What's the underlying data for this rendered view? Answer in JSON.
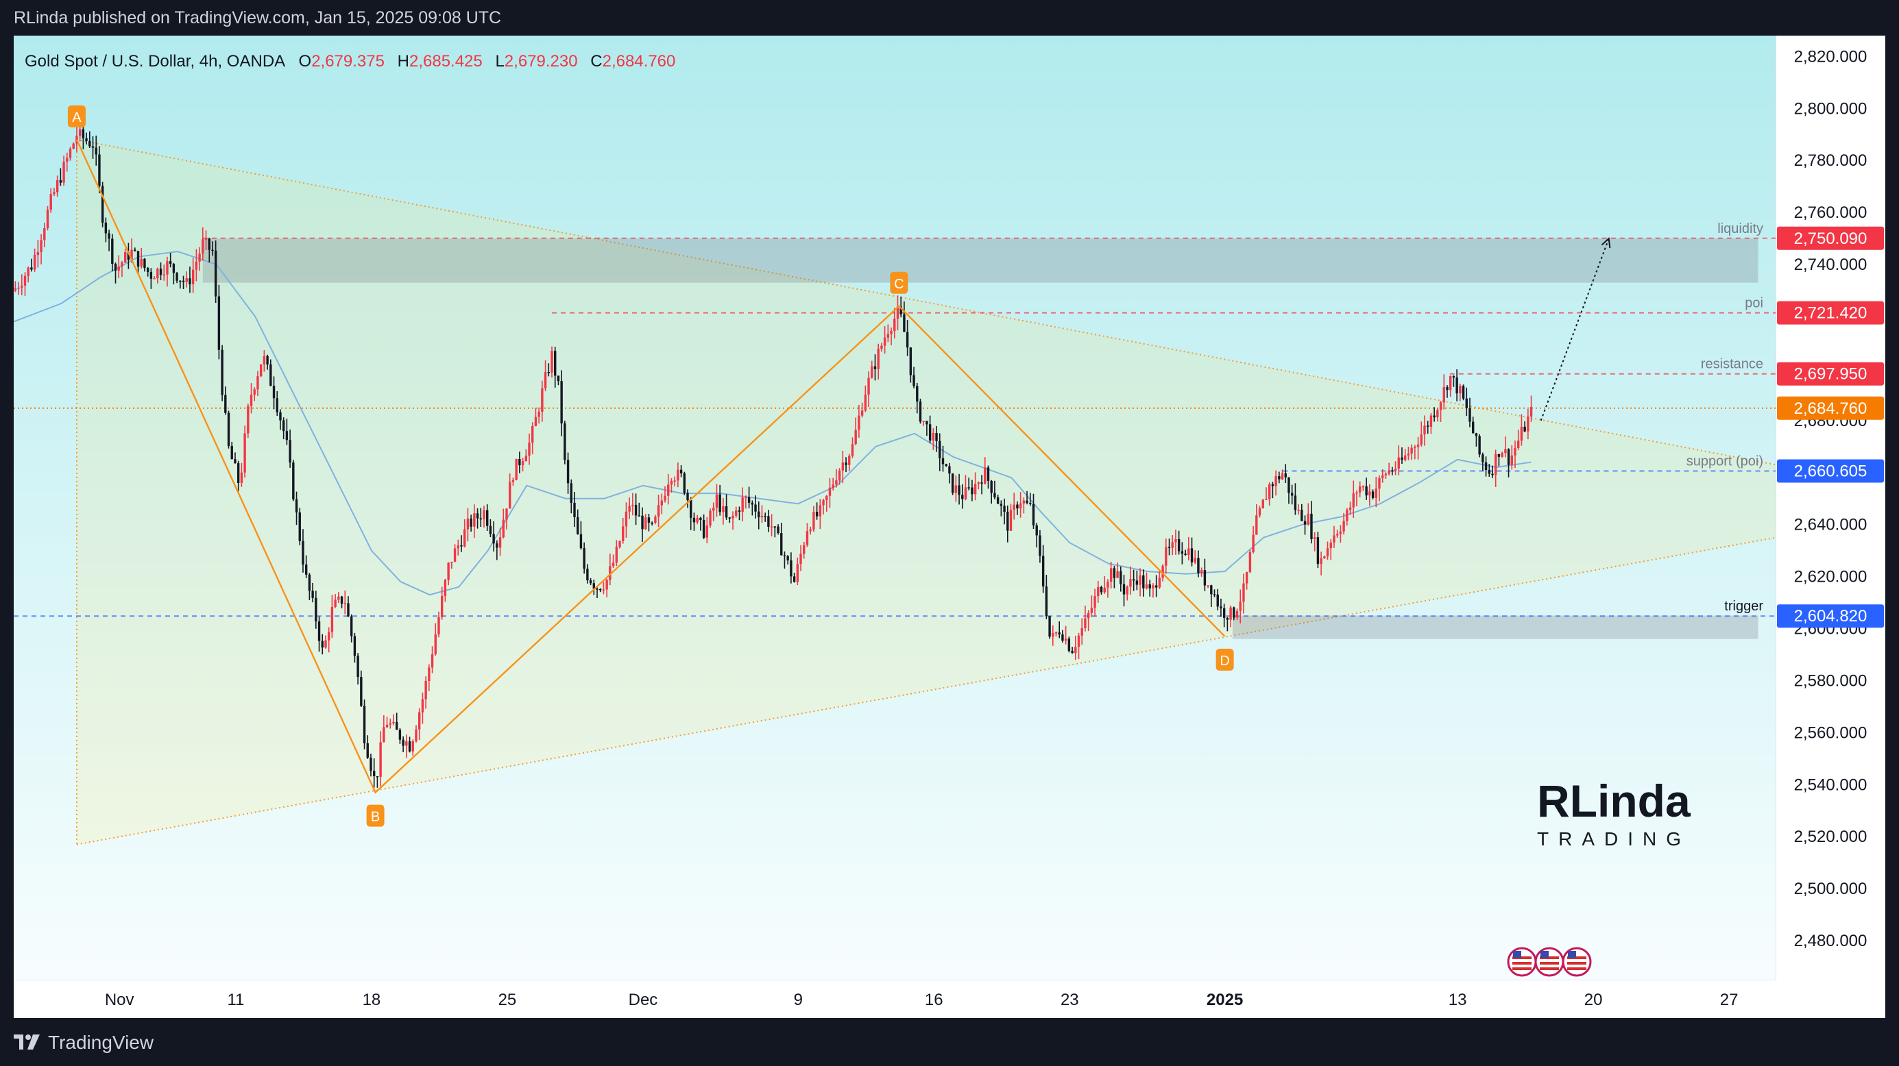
{
  "header": {
    "published": "RLinda published on TradingView.com, Jan 15, 2025 09:08 UTC"
  },
  "legend": {
    "symbol": "Gold Spot / U.S. Dollar, 4h, OANDA",
    "o_label": "O",
    "o_value": "2,679.375",
    "h_label": "H",
    "h_value": "2,685.425",
    "l_label": "L",
    "l_value": "2,679.230",
    "c_label": "C",
    "c_value": "2,684.760"
  },
  "footer": {
    "brand": "TradingView"
  },
  "watermark": {
    "line1": "RLinda",
    "line2": "TRADING"
  },
  "colors": {
    "up": "#f23645",
    "down": "#131722",
    "pattern": "#f7931a",
    "red_level": "#f23645",
    "blue_level": "#2962ff",
    "last_price": "#f57c00",
    "ma": "#7fb2e0",
    "bg_top": "#b2ebee",
    "bg_bottom": "#f7fdfe"
  },
  "chart_data": {
    "type": "candlestick",
    "timeframe": "4h",
    "ylim": [
      2465,
      2828
    ],
    "y_ticks": [
      2480,
      2500,
      2520,
      2540,
      2560,
      2580,
      2600,
      2620,
      2640,
      2660,
      2680,
      2700,
      2720,
      2740,
      2760,
      2780,
      2800,
      2820
    ],
    "y_tick_labels": [
      "2,480.000",
      "2,500.000",
      "2,520.000",
      "2,540.000",
      "2,560.000",
      "2,580.000",
      "2,600.000",
      "2,620.000",
      "2,640.000",
      "2,660.000",
      "2,680.000",
      "2,700.000",
      "2,720.000",
      "2,740.000",
      "2,760.000",
      "2,780.000",
      "2,800.000",
      "2,820.000"
    ],
    "x_ticks": [
      {
        "label": "Nov",
        "day": 5,
        "bold": false
      },
      {
        "label": "11",
        "day": 11,
        "bold": false
      },
      {
        "label": "18",
        "day": 18,
        "bold": false
      },
      {
        "label": "25",
        "day": 25,
        "bold": false
      },
      {
        "label": "Dec",
        "day": 32,
        "bold": false
      },
      {
        "label": "9",
        "day": 40,
        "bold": false
      },
      {
        "label": "16",
        "day": 47,
        "bold": false
      },
      {
        "label": "23",
        "day": 54,
        "bold": false
      },
      {
        "label": "2025",
        "day": 62,
        "bold": true
      },
      {
        "label": "13",
        "day": 74,
        "bold": false
      },
      {
        "label": "20",
        "day": 81,
        "bold": false
      },
      {
        "label": "27",
        "day": 88,
        "bold": false
      }
    ],
    "x_range": [
      -0.45,
      90.4
    ],
    "price_path": [
      [
        -0.45,
        2730
      ],
      [
        0.5,
        2740
      ],
      [
        1.5,
        2765
      ],
      [
        2.8,
        2790
      ],
      [
        3.7,
        2786
      ],
      [
        4.1,
        2760
      ],
      [
        4.8,
        2738
      ],
      [
        5.6,
        2745
      ],
      [
        6.6,
        2736
      ],
      [
        7.5,
        2740
      ],
      [
        8.5,
        2732
      ],
      [
        9.3,
        2748
      ],
      [
        9.8,
        2745
      ],
      [
        10.2,
        2700
      ],
      [
        10.6,
        2670
      ],
      [
        11.2,
        2655
      ],
      [
        11.7,
        2688
      ],
      [
        12.4,
        2705
      ],
      [
        13,
        2690
      ],
      [
        13.6,
        2672
      ],
      [
        14.1,
        2645
      ],
      [
        14.6,
        2620
      ],
      [
        15.1,
        2605
      ],
      [
        15.5,
        2590
      ],
      [
        16,
        2608
      ],
      [
        16.6,
        2612
      ],
      [
        17.2,
        2588
      ],
      [
        17.6,
        2560
      ],
      [
        18.2,
        2540
      ],
      [
        18.7,
        2565
      ],
      [
        19.3,
        2560
      ],
      [
        20,
        2555
      ],
      [
        20.7,
        2575
      ],
      [
        21.3,
        2598
      ],
      [
        22,
        2625
      ],
      [
        23,
        2640
      ],
      [
        23.8,
        2645
      ],
      [
        24.5,
        2632
      ],
      [
        25.3,
        2660
      ],
      [
        26.2,
        2672
      ],
      [
        26.9,
        2694
      ],
      [
        27.3,
        2705
      ],
      [
        27.7,
        2690
      ],
      [
        28,
        2660
      ],
      [
        28.5,
        2640
      ],
      [
        29,
        2622
      ],
      [
        29.6,
        2616
      ],
      [
        30.1,
        2618
      ],
      [
        30.6,
        2628
      ],
      [
        31.3,
        2648
      ],
      [
        31.9,
        2641
      ],
      [
        32.5,
        2638
      ],
      [
        33.4,
        2660
      ],
      [
        34,
        2658
      ],
      [
        34.6,
        2642
      ],
      [
        35.2,
        2637
      ],
      [
        35.8,
        2650
      ],
      [
        36.4,
        2640
      ],
      [
        37.2,
        2650
      ],
      [
        38,
        2645
      ],
      [
        38.6,
        2640
      ],
      [
        39.2,
        2630
      ],
      [
        39.8,
        2618
      ],
      [
        40.5,
        2640
      ],
      [
        41.2,
        2645
      ],
      [
        42,
        2660
      ],
      [
        42.8,
        2670
      ],
      [
        43.4,
        2690
      ],
      [
        44.1,
        2705
      ],
      [
        44.6,
        2715
      ],
      [
        45.2,
        2722
      ],
      [
        45.6,
        2710
      ],
      [
        46.1,
        2685
      ],
      [
        46.8,
        2675
      ],
      [
        47.3,
        2667
      ],
      [
        47.9,
        2655
      ],
      [
        48.5,
        2651
      ],
      [
        49,
        2654
      ],
      [
        49.6,
        2660
      ],
      [
        50.2,
        2651
      ],
      [
        50.8,
        2640
      ],
      [
        51.4,
        2650
      ],
      [
        52,
        2646
      ],
      [
        52.5,
        2625
      ],
      [
        53,
        2595
      ],
      [
        53.5,
        2600
      ],
      [
        54.1,
        2592
      ],
      [
        54.8,
        2602
      ],
      [
        55.5,
        2615
      ],
      [
        56.2,
        2623
      ],
      [
        56.8,
        2615
      ],
      [
        57.5,
        2620
      ],
      [
        58.2,
        2613
      ],
      [
        58.9,
        2628
      ],
      [
        59.5,
        2632
      ],
      [
        60.2,
        2630
      ],
      [
        60.8,
        2620
      ],
      [
        61.3,
        2616
      ],
      [
        61.8,
        2607
      ],
      [
        62.4,
        2605
      ],
      [
        63,
        2615
      ],
      [
        63.6,
        2640
      ],
      [
        64.3,
        2655
      ],
      [
        65,
        2660
      ],
      [
        65.7,
        2645
      ],
      [
        66.3,
        2642
      ],
      [
        66.9,
        2625
      ],
      [
        67.5,
        2635
      ],
      [
        68.2,
        2642
      ],
      [
        68.9,
        2655
      ],
      [
        69.6,
        2652
      ],
      [
        70.3,
        2660
      ],
      [
        71,
        2663
      ],
      [
        71.7,
        2670
      ],
      [
        72.4,
        2678
      ],
      [
        73.1,
        2688
      ],
      [
        73.6,
        2697
      ],
      [
        74.2,
        2690
      ],
      [
        74.7,
        2678
      ],
      [
        75.2,
        2665
      ],
      [
        75.7,
        2660
      ],
      [
        76.2,
        2670
      ],
      [
        76.7,
        2665
      ],
      [
        77.3,
        2675
      ],
      [
        77.8,
        2683
      ]
    ],
    "last_candle_x": 77.8,
    "moving_average": [
      [
        -0.45,
        2718
      ],
      [
        2,
        2725
      ],
      [
        4,
        2735
      ],
      [
        6,
        2743
      ],
      [
        8,
        2745
      ],
      [
        10,
        2740
      ],
      [
        12,
        2720
      ],
      [
        14,
        2690
      ],
      [
        16,
        2660
      ],
      [
        18,
        2630
      ],
      [
        19.5,
        2618
      ],
      [
        21,
        2613
      ],
      [
        22.5,
        2616
      ],
      [
        24,
        2630
      ],
      [
        26,
        2655
      ],
      [
        28,
        2650
      ],
      [
        30,
        2650
      ],
      [
        32,
        2655
      ],
      [
        34,
        2652
      ],
      [
        36,
        2652
      ],
      [
        38,
        2650
      ],
      [
        40,
        2648
      ],
      [
        42,
        2655
      ],
      [
        44,
        2670
      ],
      [
        46,
        2675
      ],
      [
        48,
        2666
      ],
      [
        49.5,
        2662
      ],
      [
        51,
        2658
      ],
      [
        52.5,
        2645
      ],
      [
        54,
        2633
      ],
      [
        56,
        2625
      ],
      [
        58,
        2622
      ],
      [
        60,
        2621
      ],
      [
        62,
        2622
      ],
      [
        64,
        2635
      ],
      [
        66,
        2640
      ],
      [
        68,
        2643
      ],
      [
        70,
        2648
      ],
      [
        72,
        2656
      ],
      [
        74,
        2665
      ],
      [
        76,
        2662
      ],
      [
        77.8,
        2664
      ]
    ],
    "triangle": {
      "top": [
        [
          2.8,
          2788
        ],
        [
          90.4,
          2663
        ]
      ],
      "bottom": [
        [
          2.8,
          2517
        ],
        [
          90.4,
          2635
        ]
      ],
      "apex_vertical": [
        [
          2.8,
          2788
        ],
        [
          2.8,
          2517
        ]
      ]
    },
    "abcd": [
      {
        "label": "A",
        "x": 2.8,
        "y": 2788,
        "pos": "above"
      },
      {
        "label": "B",
        "x": 18.2,
        "y": 2537,
        "pos": "below"
      },
      {
        "label": "C",
        "x": 45.2,
        "y": 2724,
        "pos": "above"
      },
      {
        "label": "D",
        "x": 62,
        "y": 2597,
        "pos": "below"
      }
    ],
    "zones": [
      {
        "name": "liquidity-zone",
        "x1": 9.3,
        "x2": 89.5,
        "y1": 2733,
        "y2": 2750
      },
      {
        "name": "trigger-zone",
        "x1": 62.4,
        "x2": 89.5,
        "y1": 2596,
        "y2": 2605
      }
    ],
    "levels": [
      {
        "name": "liquidity",
        "label": "liquidity",
        "price": 2750.09,
        "price_label": "2,750.090",
        "x_start": 9.3,
        "color": "red"
      },
      {
        "name": "poi",
        "label": "poi",
        "price": 2721.42,
        "price_label": "2,721.420",
        "x_start": 27.3,
        "color": "red"
      },
      {
        "name": "resistance",
        "label": "resistance",
        "price": 2697.95,
        "price_label": "2,697.950",
        "x_start": 73.6,
        "color": "red"
      },
      {
        "name": "support",
        "label": "support (poi)",
        "price": 2660.605,
        "price_label": "2,660.605",
        "x_start": 65,
        "color": "blue"
      },
      {
        "name": "trigger",
        "label": "trigger",
        "price": 2604.82,
        "price_label": "2,604.820",
        "x_start": -0.45,
        "color": "blue"
      }
    ],
    "last_price": {
      "price": 2684.76,
      "label": "2,684.760"
    },
    "projection": [
      [
        78.3,
        2680
      ],
      [
        81.8,
        2750
      ]
    ]
  }
}
